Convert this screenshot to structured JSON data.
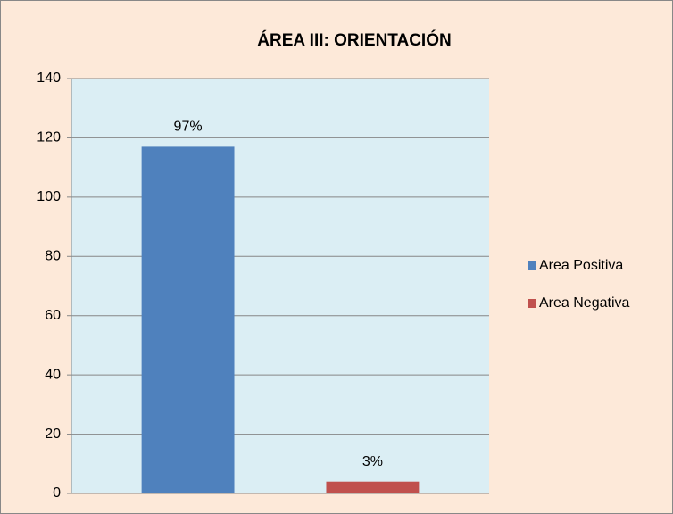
{
  "chart_data": {
    "type": "bar",
    "title": "ÁREA III: ORIENTACIÓN",
    "categories": [
      null
    ],
    "series": [
      {
        "name": "Area Positiva",
        "color": "#4f81bd",
        "values": [
          117
        ],
        "value_labels": [
          "97%"
        ]
      },
      {
        "name": "Area Negativa",
        "color": "#c0504d",
        "values": [
          4
        ],
        "value_labels": [
          "3%"
        ]
      }
    ],
    "ylim": [
      0,
      140
    ],
    "yticks": [
      0,
      20,
      40,
      60,
      80,
      100,
      120,
      140
    ],
    "grid": true,
    "legend": "right"
  }
}
